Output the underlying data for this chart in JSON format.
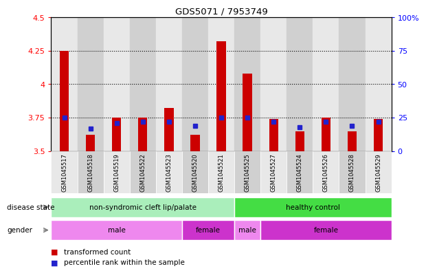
{
  "title": "GDS5071 / 7953749",
  "samples": [
    "GSM1045517",
    "GSM1045518",
    "GSM1045519",
    "GSM1045522",
    "GSM1045523",
    "GSM1045520",
    "GSM1045521",
    "GSM1045525",
    "GSM1045527",
    "GSM1045524",
    "GSM1045526",
    "GSM1045528",
    "GSM1045529"
  ],
  "transformed_count": [
    4.25,
    3.62,
    3.75,
    3.75,
    3.82,
    3.62,
    4.32,
    4.08,
    3.74,
    3.65,
    3.75,
    3.65,
    3.74
  ],
  "percentile_rank": [
    25,
    17,
    21,
    22,
    22,
    19,
    25,
    25,
    22,
    18,
    22,
    19,
    22
  ],
  "ylim_left": [
    3.5,
    4.5
  ],
  "ylim_right": [
    0,
    100
  ],
  "yticks_left": [
    3.5,
    3.75,
    4.0,
    4.25,
    4.5
  ],
  "yticks_right": [
    0,
    25,
    50,
    75,
    100
  ],
  "ytick_labels_left": [
    "3.5",
    "3.75",
    "4",
    "4.25",
    "4.5"
  ],
  "ytick_labels_right": [
    "0",
    "25",
    "50",
    "75",
    "100%"
  ],
  "hlines": [
    3.75,
    4.0,
    4.25
  ],
  "bar_color": "#cc0000",
  "dot_color": "#2222cc",
  "bar_bottom": 3.5,
  "bar_width": 0.35,
  "disease_state_groups": [
    {
      "label": "non-syndromic cleft lip/palate",
      "start": 0,
      "end": 7,
      "color": "#aaeebb"
    },
    {
      "label": "healthy control",
      "start": 7,
      "end": 13,
      "color": "#44dd44"
    }
  ],
  "gender_groups": [
    {
      "label": "male",
      "start": 0,
      "end": 5,
      "color": "#ee88ee"
    },
    {
      "label": "female",
      "start": 5,
      "end": 7,
      "color": "#cc33cc"
    },
    {
      "label": "male",
      "start": 7,
      "end": 8,
      "color": "#ee88ee"
    },
    {
      "label": "female",
      "start": 8,
      "end": 13,
      "color": "#cc33cc"
    }
  ],
  "col_bg_even": "#e8e8e8",
  "col_bg_odd": "#d0d0d0",
  "legend_labels": [
    "transformed count",
    "percentile rank within the sample"
  ],
  "legend_colors": [
    "#cc0000",
    "#2222cc"
  ]
}
